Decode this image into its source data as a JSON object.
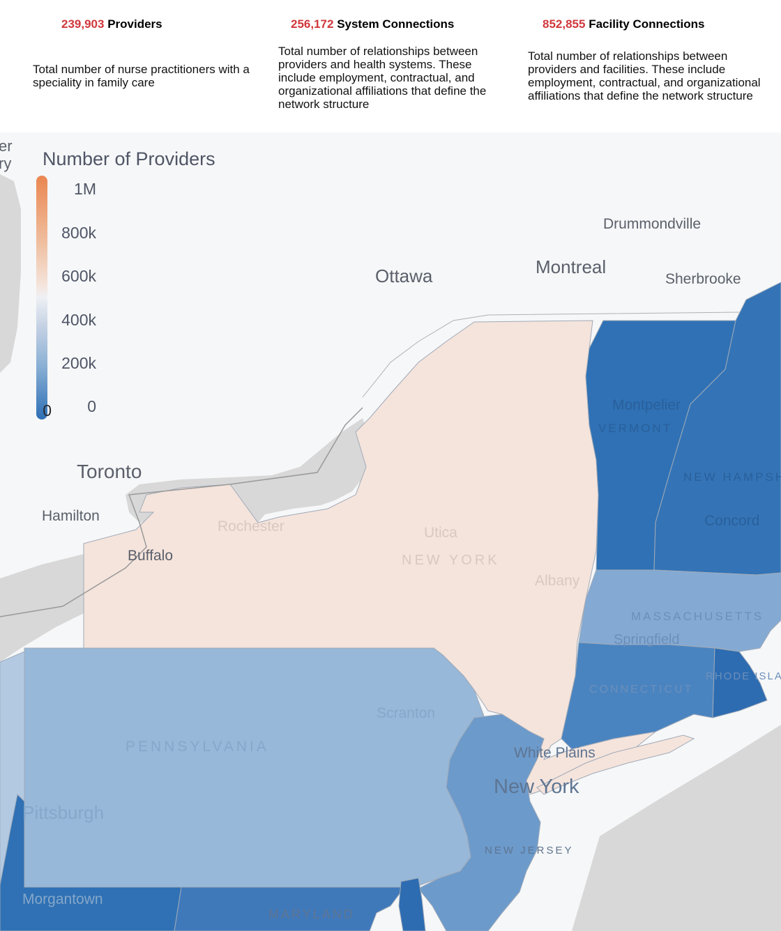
{
  "stats": [
    {
      "number": "239,903",
      "label": "Providers",
      "description": "Total number of nurse practitioners with a speciality in family care"
    },
    {
      "number": "256,172",
      "label": "System Connections",
      "description": "Total number of relationships between providers and health systems. These include employment, contractual, and organizational affiliations that define the network structure"
    },
    {
      "number": "852,855",
      "label": "Facility Connections",
      "description": "Total number of relationships between providers and facilities. These include employment, contractual, and organizational affiliations that define the network structure"
    }
  ],
  "legend": {
    "title": "Number of Providers",
    "ticks": [
      "1M",
      "800k",
      "600k",
      "400k",
      "200k",
      "0"
    ],
    "end_label": "0",
    "colors": {
      "high": "#ea8650",
      "mid": "#f5e4dc",
      "low": "#2d6fb5"
    }
  },
  "map": {
    "cities": [
      "Ottawa",
      "Montreal",
      "Drummondville",
      "Sherbrooke",
      "Toronto",
      "Hamilton",
      "Buffalo",
      "Rochester",
      "Utica",
      "Albany",
      "Montpelier",
      "Concord",
      "Springfield",
      "Scranton",
      "White Plains",
      "New York",
      "Pittsburgh",
      "Morgantown"
    ],
    "states": [
      "NEW YORK",
      "VERMONT",
      "NEW HAMPSHIRE",
      "MASSACHUSETTS",
      "CONNECTICUT",
      "RHODE ISLAND",
      "PENNSYLVANIA",
      "NEW JERSEY",
      "MARYLAND"
    ],
    "partial_labels": [
      "er",
      "ry"
    ],
    "fills": {
      "new_york": "#f5e4dc",
      "vermont": "#2f71b4",
      "new_hampshire": "#3474b6",
      "massachusetts": "#84aad3",
      "connecticut": "#4a84c0",
      "rhode_island": "#2d6cb1",
      "pennsylvania": "#97b8d8",
      "new_jersey": "#6c9acb",
      "west": "#b3c9e2",
      "maryland": "#4079ba",
      "land": "#f6f7f8",
      "water": "#d8d8d8"
    }
  }
}
